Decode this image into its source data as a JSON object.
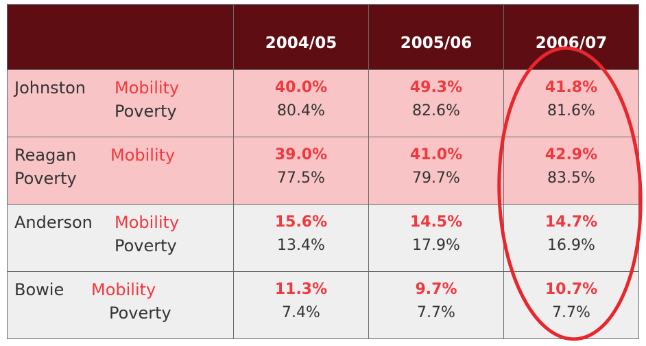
{
  "header": {
    "corner": "",
    "years": [
      "2004/05",
      "2005/06",
      "2006/07"
    ]
  },
  "rows": [
    {
      "county": "Johnston",
      "mobility_label": "Mobility",
      "poverty_label": "Poverty",
      "mobility": [
        "40.0%",
        "49.3%",
        "41.8%"
      ],
      "poverty": [
        "80.4%",
        "82.6%",
        "81.6%"
      ]
    },
    {
      "county": "Reagan",
      "mobility_label": "Mobility",
      "poverty_label": "Poverty",
      "mobility": [
        "39.0%",
        "41.0%",
        "42.9%"
      ],
      "poverty": [
        "77.5%",
        "79.7%",
        "83.5%"
      ]
    },
    {
      "county": "Anderson",
      "mobility_label": "Mobility",
      "poverty_label": "Poverty",
      "mobility": [
        "15.6%",
        "14.5%",
        "14.7%"
      ],
      "poverty": [
        "13.4%",
        "17.9%",
        "16.9%"
      ]
    },
    {
      "county": "Bowie",
      "mobility_label": "Mobility",
      "poverty_label": "Poverty",
      "mobility": [
        "11.3%",
        "9.7%",
        "10.7%"
      ],
      "poverty": [
        "7.4%",
        "7.7%",
        "7.7%"
      ]
    }
  ],
  "colors": {
    "header_bg": "#5e0d12",
    "pink_row": "#f8c4c6",
    "gray_row": "#efefef",
    "mobility_red": "#f0393f",
    "circle_red": "#e8262c"
  }
}
